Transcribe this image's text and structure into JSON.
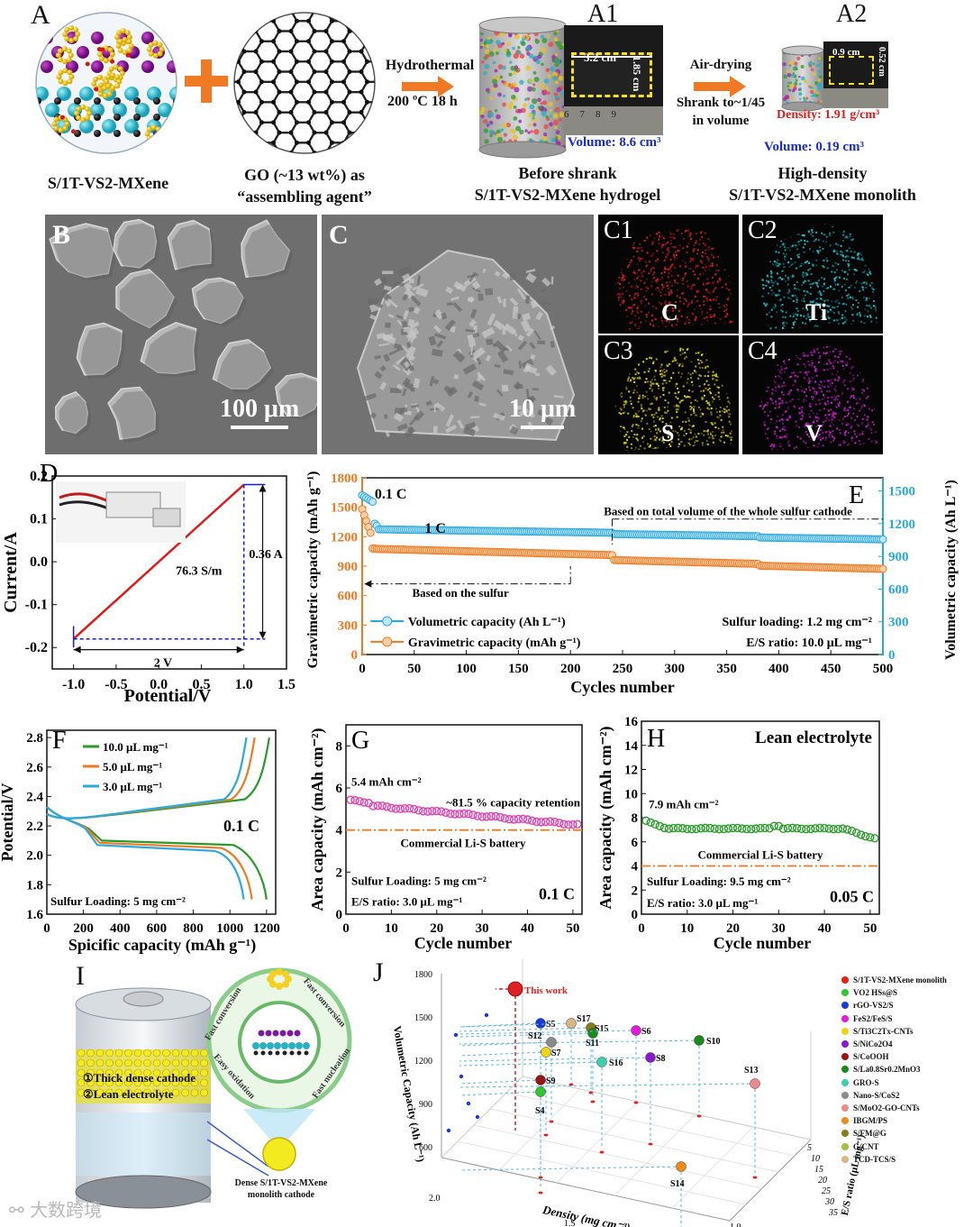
{
  "panel_A": {
    "label": "A",
    "label_A1": "A1",
    "label_A2": "A2",
    "mxene_caption": "S/1T-VS2-MXene",
    "go_caption_1": "GO (~13 wt%) as",
    "go_caption_2": "“assembling agent”",
    "hydro_1": "Hydrothermal",
    "hydro_2": "200 ºC  18 h",
    "hydrogel_width": "3.2 cm",
    "hydrogel_height": "1.85 cm",
    "hydrogel_volume": "Volume: 8.6 cm³",
    "hydrogel_caption_1": "Before shrank",
    "hydrogel_caption_2": "S/1T-VS2-MXene hydrogel",
    "air_1": "Air-drying",
    "air_2": "Shrank to~1/45",
    "air_3": "in volume",
    "mono_width": "0.9 cm",
    "mono_height": "0.52 cm",
    "mono_density": "Density: 1.91 g/cm³",
    "mono_volume": "Volume: 0.19 cm³",
    "mono_caption_1": "High-density",
    "mono_caption_2": "S/1T-VS2-MXene monolith"
  },
  "panel_B": {
    "label": "B",
    "scale": "100 μm"
  },
  "panel_C": {
    "label": "C",
    "scale": "10 μm",
    "maps": [
      {
        "label": "C1",
        "element": "C",
        "color": "#e02020"
      },
      {
        "label": "C2",
        "element": "Ti",
        "color": "#19c8d2"
      },
      {
        "label": "C3",
        "element": "S",
        "color": "#e6de10"
      },
      {
        "label": "C4",
        "element": "V",
        "color": "#d21ed2"
      }
    ]
  },
  "panel_D": {
    "label": "D",
    "ylabel": "Current/A",
    "xlabel": "Potential/V",
    "conductivity": "76.3 S/m",
    "delta_i": "0.36 A",
    "delta_v": "2 V",
    "xticks": [
      "-1.0",
      "-0.5",
      "0.0",
      "0.5",
      "1.0",
      "1.5"
    ],
    "yticks": [
      "0.2",
      "0.1",
      "0.0",
      "-0.1",
      "-0.2"
    ]
  },
  "panel_E": {
    "label": "E",
    "ylabel_left": "Gravimetric capacity (mAh g⁻¹)",
    "ylabel_right": "Volumetric capacity (Ah L⁻¹)",
    "xlabel": "Cycles number",
    "rate1": "0.1 C",
    "rate2": "1 C",
    "note_total": "Based on total volume of the whole sulfur cathode",
    "note_sulfur": "Based  on the sulfur",
    "legend_vol": "Volumetric capacity (Ah L⁻¹)",
    "legend_grav": "Gravimetric capacity (mAh g⁻¹)",
    "loading": "Sulfur loading: 1.2 mg cm⁻²",
    "es_ratio": "E/S ratio: 10.0 μL mg⁻¹",
    "xticks": [
      "0",
      "50",
      "100",
      "150",
      "200",
      "250",
      "300",
      "350",
      "400",
      "450",
      "500"
    ],
    "yticks_left": [
      "0",
      "300",
      "600",
      "900",
      "1200",
      "1500",
      "1800"
    ],
    "yticks_right": [
      "0",
      "300",
      "600",
      "900",
      "1200",
      "1500"
    ]
  },
  "panel_F": {
    "label": "F",
    "ylabel": "Potential/V",
    "xlabel": "Spicific capacity (mAh g⁻¹)",
    "rate": "0.1 C",
    "loading": "Sulfur Loading: 5 mg cm⁻²",
    "legend": [
      "10.0 μL mg⁻¹",
      "5.0 μL mg⁻¹",
      "3.0 μL mg⁻¹"
    ],
    "xticks": [
      "0",
      "200",
      "400",
      "600",
      "800",
      "1000",
      "1200"
    ],
    "yticks": [
      "1.6",
      "1.8",
      "2.0",
      "2.2",
      "2.4",
      "2.6",
      "2.8"
    ]
  },
  "panel_G": {
    "label": "G",
    "ylabel": "Area capacity (mAh cm⁻²)",
    "xlabel": "Cycle number",
    "initial": "5.4 mAh cm⁻²",
    "retention": "~81.5 % capacity retention",
    "commercial": "Commercial Li-S battery",
    "loading": "Sulfur Loading: 5 mg cm⁻²",
    "es_ratio": "E/S ratio: 3.0 μL mg⁻¹",
    "rate": "0.1 C",
    "xticks": [
      "0",
      "10",
      "20",
      "30",
      "40",
      "50"
    ],
    "yticks": [
      "0",
      "2",
      "4",
      "6",
      "8"
    ]
  },
  "panel_H": {
    "label": "H",
    "title": "Lean electrolyte",
    "ylabel": "Area capacity (mAh cm⁻²)",
    "xlabel": "Cycle number",
    "initial": "7.9 mAh cm⁻²",
    "commercial": "Commercial Li-S battery",
    "loading": "Sulfur Loading: 9.5 mg cm⁻²",
    "es_ratio": "E/S ratio: 3.0 μL mg⁻¹",
    "rate": "0.05 C",
    "xticks": [
      "0",
      "10",
      "20",
      "30",
      "40",
      "50"
    ],
    "yticks": [
      "0",
      "2",
      "4",
      "6",
      "8",
      "10",
      "12",
      "14",
      "16"
    ]
  },
  "panel_I": {
    "label": "I",
    "item1": "①Thick dense cathode",
    "item2": "②Lean electrolyte",
    "arc1": "Fast conversion",
    "arc2": "Fast conversion",
    "arc3": "Fast nucleation",
    "arc4": "Easy oxidation",
    "caption_1": "Dense S/1T-VS2-MXene",
    "caption_2": "monolith cathode"
  },
  "panel_J": {
    "label": "J",
    "zlabel": "Volumetric Capacity (Ah L⁻¹)",
    "xlabel": "Density (mg cm⁻³)",
    "ylabel": "E/S ratio (μL mg⁻¹)",
    "this_work": "This work",
    "zticks": [
      "600",
      "900",
      "1200",
      "1500",
      "1800"
    ],
    "xticks": [
      "1.0",
      "1.5",
      "2.0"
    ],
    "yticks": [
      "5",
      "10",
      "15",
      "20",
      "25",
      "30",
      "35"
    ],
    "legend": [
      {
        "name": "S/1T-VS2-MXene monolith",
        "color": "#e8201a"
      },
      {
        "name": "VO2 HSs@S",
        "color": "#2ec82e"
      },
      {
        "name": "rGO-VS2/S",
        "color": "#1a3ad8"
      },
      {
        "name": "FeS2/FeS/S",
        "color": "#e41ad8"
      },
      {
        "name": "S/Ti3C2Tx-CNTs",
        "color": "#f0d414"
      },
      {
        "name": "S/NiCo2O4",
        "color": "#8a1ad0"
      },
      {
        "name": "S/CoOOH",
        "color": "#9a1414"
      },
      {
        "name": "S/La0.8Sr0.2MnO3",
        "color": "#1a8a1a"
      },
      {
        "name": "GRO-S",
        "color": "#3ad0b0"
      },
      {
        "name": "Nano-S/CoS2",
        "color": "#8a8a8a"
      },
      {
        "name": "S/MoO2-GO-CNTs",
        "color": "#f08a8a"
      },
      {
        "name": "IBGM/PS",
        "color": "#f08a1a"
      },
      {
        "name": "S/FM@G",
        "color": "#8a7a1a"
      },
      {
        "name": "G/CNT",
        "color": "#a0c040"
      },
      {
        "name": "TCD-TCS/S",
        "color": "#d8b880"
      }
    ],
    "points": [
      {
        "label": "S5",
        "color": "#1a3ad8"
      },
      {
        "label": "S17",
        "color": "#d8b880"
      },
      {
        "label": "S15",
        "color": "#8a7a1a"
      },
      {
        "label": "S11",
        "color": "#1a8a1a"
      },
      {
        "label": "S6",
        "color": "#e41ad8"
      },
      {
        "label": "S10",
        "color": "#1a8a1a"
      },
      {
        "label": "S12",
        "color": "#8a8a8a"
      },
      {
        "label": "S7",
        "color": "#f0d414"
      },
      {
        "label": "S8",
        "color": "#8a1ad0"
      },
      {
        "label": "S16",
        "color": "#3ad0b0"
      },
      {
        "label": "S13",
        "color": "#f08a8a"
      },
      {
        "label": "S9",
        "color": "#9a1414"
      },
      {
        "label": "S4",
        "color": "#2ec82e"
      },
      {
        "label": "S14",
        "color": "#f08a1a"
      }
    ]
  },
  "watermark": "大数跨境"
}
